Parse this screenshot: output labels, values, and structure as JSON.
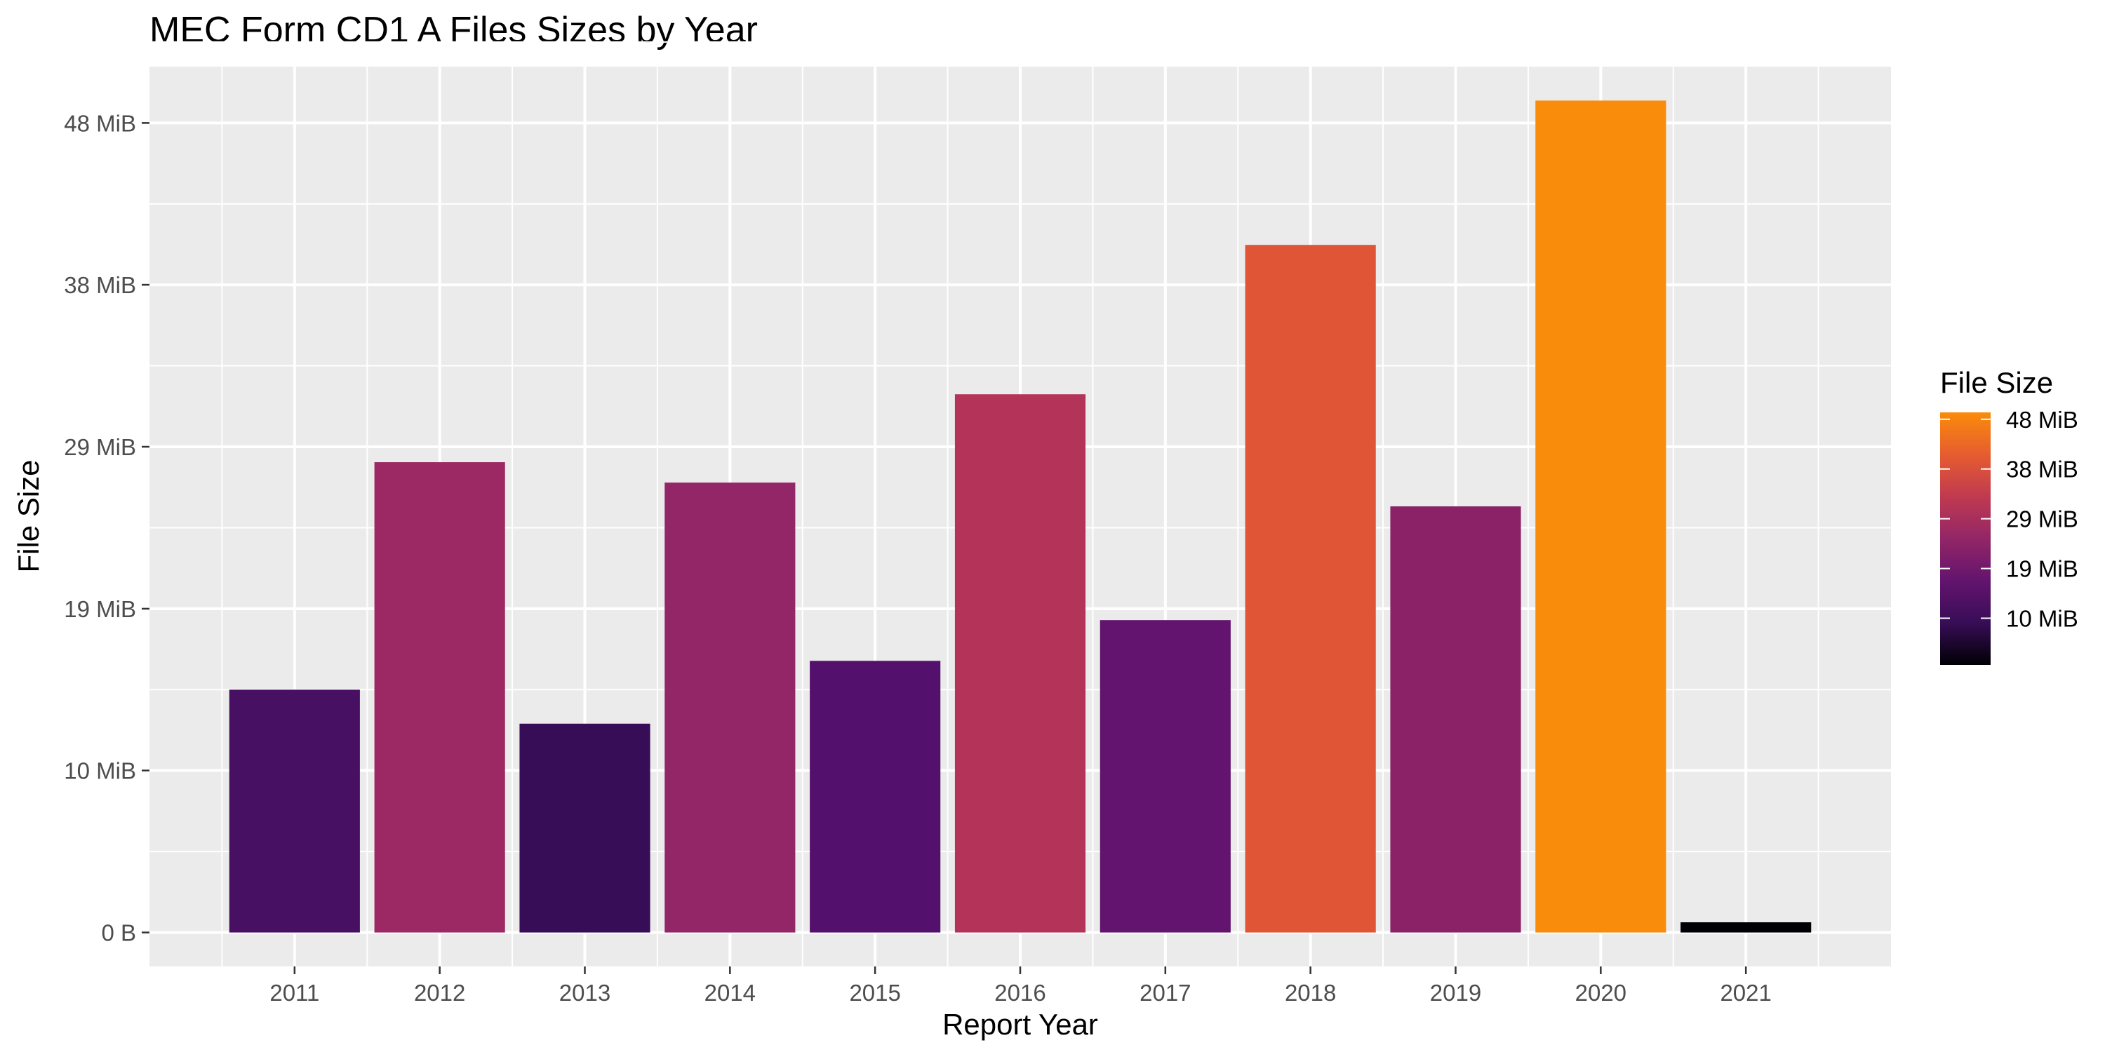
{
  "chart_data": {
    "type": "bar",
    "title": "MEC Form CD1 A Files Sizes by Year",
    "xlabel": "Report Year",
    "ylabel": "File Size",
    "unit": "MiB",
    "categories": [
      "2011",
      "2012",
      "2013",
      "2014",
      "2015",
      "2016",
      "2017",
      "2018",
      "2019",
      "2020",
      "2021"
    ],
    "values": [
      14.3,
      27.7,
      12.3,
      26.5,
      16.0,
      31.7,
      18.4,
      40.5,
      25.1,
      49.0,
      0.6
    ],
    "ylim": [
      -2,
      51
    ],
    "y_ticks": [
      0,
      9.54,
      19.07,
      28.61,
      38.15,
      47.68
    ],
    "y_tick_labels": [
      "0 B",
      "10 MiB",
      "19 MiB",
      "29 MiB",
      "38 MiB",
      "48 MiB"
    ],
    "x_ticks": [
      2011,
      2012,
      2013,
      2014,
      2015,
      2016,
      2017,
      2018,
      2019,
      2020,
      2021
    ],
    "x_tick_labels": [
      "2011",
      "2012",
      "2013",
      "2014",
      "2015",
      "2016",
      "2017",
      "2018",
      "2019",
      "2020",
      "2021"
    ],
    "xlim": [
      2010,
      2022
    ],
    "grid": true,
    "background_color": "#ebebeb",
    "colors": [
      "#471063",
      "#9c2964",
      "#380d57",
      "#932667",
      "#54106d",
      "#b43359",
      "#63146e",
      "#e05536",
      "#8b2267",
      "#f98c0a",
      "#000004"
    ],
    "legend": {
      "title": "File Size",
      "placement": "right",
      "type": "colorbar",
      "range": [
        0.6,
        49.0
      ],
      "ticks": [
        9.54,
        19.07,
        28.61,
        38.15,
        47.68
      ],
      "tick_labels": [
        "10 MiB",
        "19 MiB",
        "29 MiB",
        "38 MiB",
        "48 MiB"
      ],
      "gradient": [
        "#000004",
        "#380d57",
        "#63146e",
        "#932667",
        "#c03a50",
        "#e65d2f",
        "#fb8b0a"
      ]
    }
  }
}
